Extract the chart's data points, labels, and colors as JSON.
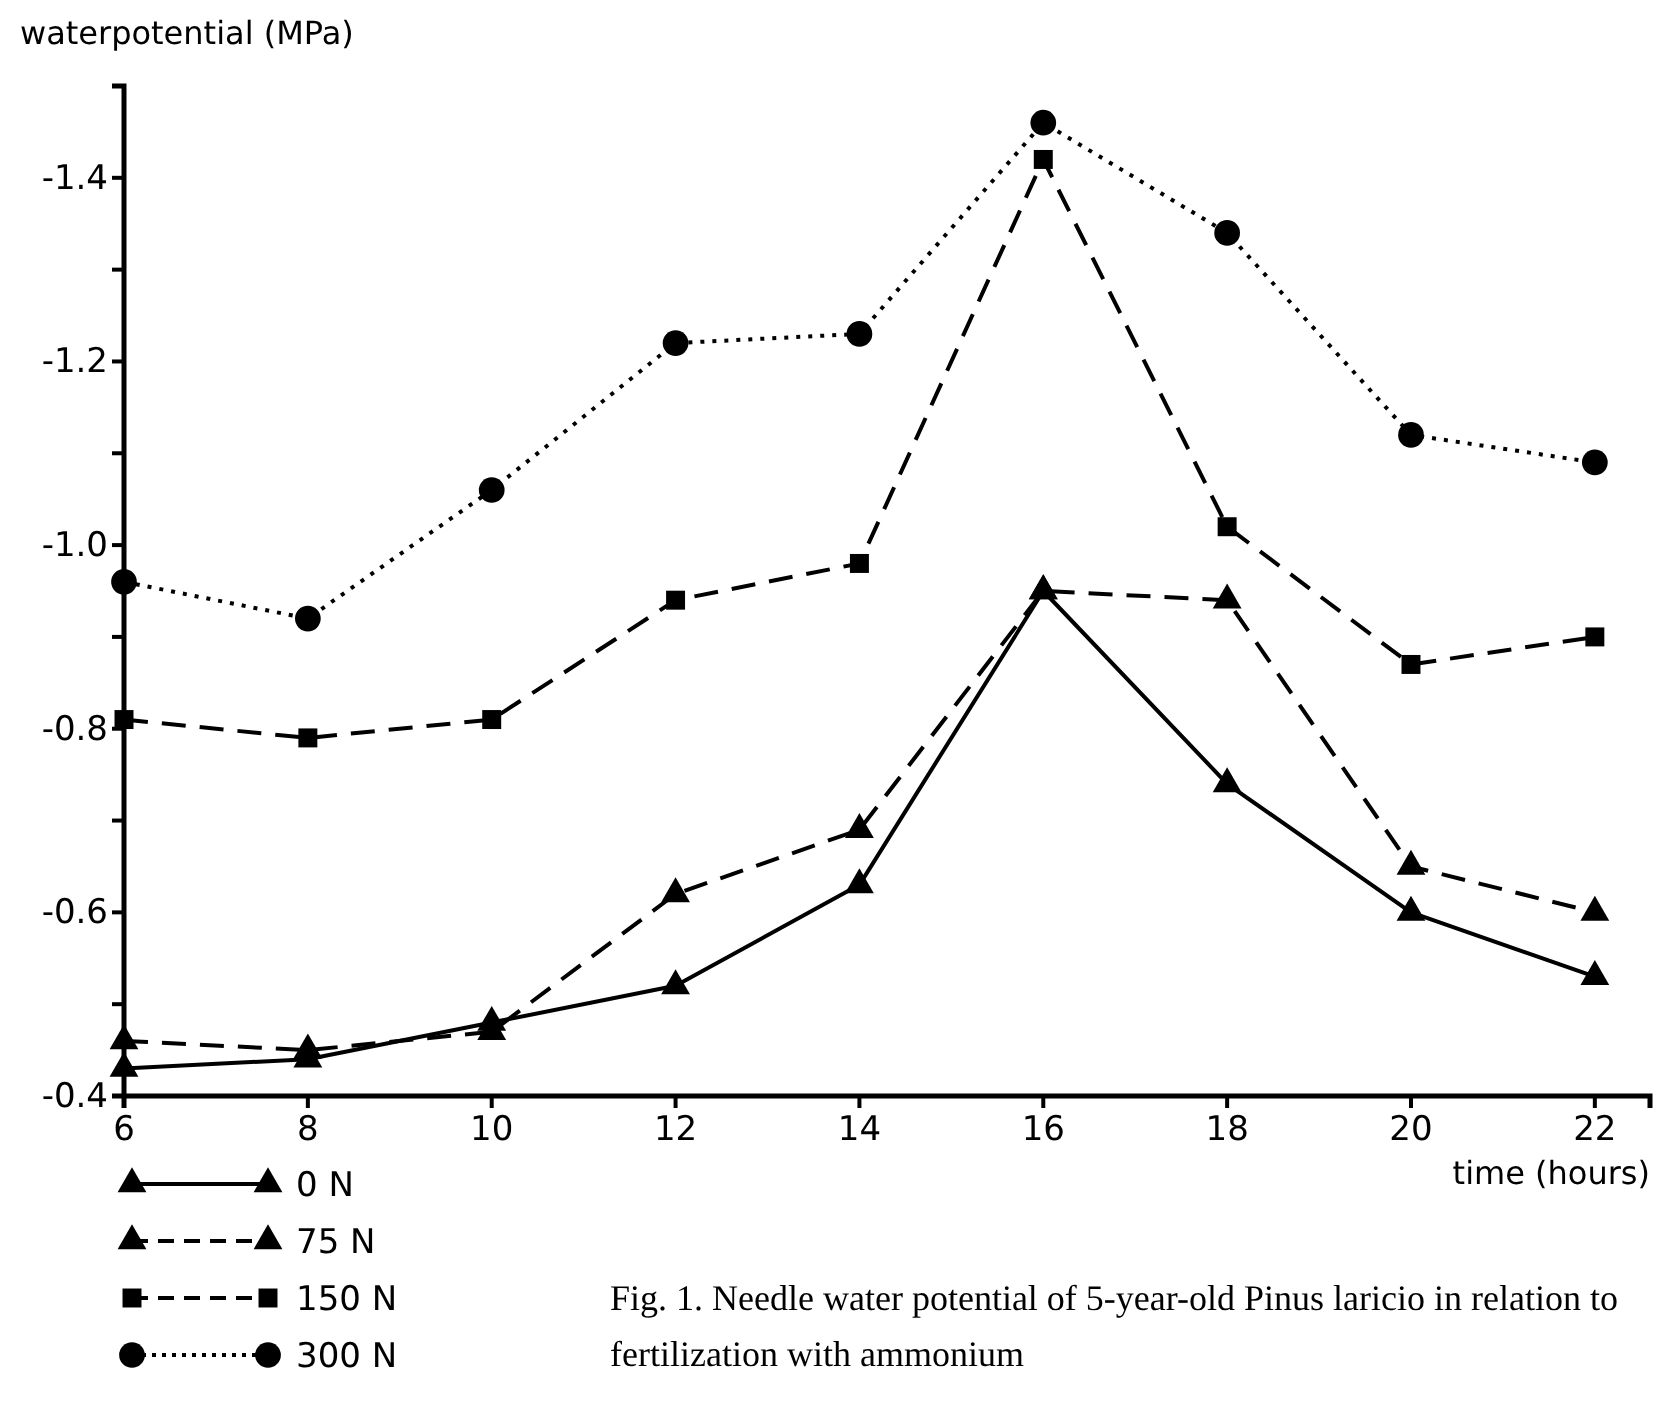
{
  "chart_data": {
    "type": "line",
    "ylabel": "waterpotential (MPa)",
    "xlabel": "time (hours)",
    "x": [
      6,
      8,
      10,
      12,
      14,
      16,
      18,
      20,
      22
    ],
    "xlim": [
      6,
      22.6
    ],
    "xticks": [
      6,
      8,
      10,
      12,
      14,
      16,
      18,
      20,
      22
    ],
    "ylim": [
      -0.4,
      -1.5
    ],
    "yticks": [
      {
        "value": -0.4,
        "label": "-0.4"
      },
      {
        "value": -0.5,
        "label": null
      },
      {
        "value": -0.6,
        "label": "-0.6"
      },
      {
        "value": -0.7,
        "label": null
      },
      {
        "value": -0.8,
        "label": "-0.8"
      },
      {
        "value": -0.9,
        "label": null
      },
      {
        "value": -1.0,
        "label": "-1.0"
      },
      {
        "value": -1.1,
        "label": null
      },
      {
        "value": -1.2,
        "label": "-1.2"
      },
      {
        "value": -1.3,
        "label": null
      },
      {
        "value": -1.4,
        "label": "-1.4"
      }
    ],
    "legend": "bottom left",
    "series": [
      {
        "name": "0 N",
        "color": "#000000",
        "marker": "triangle",
        "line_style": "solid",
        "values": [
          -0.43,
          -0.44,
          -0.48,
          -0.52,
          -0.63,
          -0.95,
          -0.74,
          -0.6,
          -0.53
        ]
      },
      {
        "name": "75 N",
        "color": "#000000",
        "marker": "triangle",
        "line_style": "dashed",
        "values": [
          -0.46,
          -0.45,
          -0.47,
          -0.62,
          -0.69,
          -0.95,
          -0.94,
          -0.65,
          -0.6
        ]
      },
      {
        "name": "150 N",
        "color": "#000000",
        "marker": "square",
        "line_style": "dashed",
        "values": [
          -0.81,
          -0.79,
          -0.81,
          -0.94,
          -0.98,
          -1.42,
          -1.02,
          -0.87,
          -0.9
        ]
      },
      {
        "name": "300 N",
        "color": "#000000",
        "marker": "circle",
        "line_style": "dotted",
        "values": [
          -0.96,
          -0.92,
          -1.06,
          -1.22,
          -1.23,
          -1.46,
          -1.34,
          -1.12,
          -1.09
        ]
      }
    ],
    "annotations": [
      "Fig. 1. Needle water potential of 5-year-old Pinus laricio in relation to fertilization with ammonium"
    ]
  }
}
